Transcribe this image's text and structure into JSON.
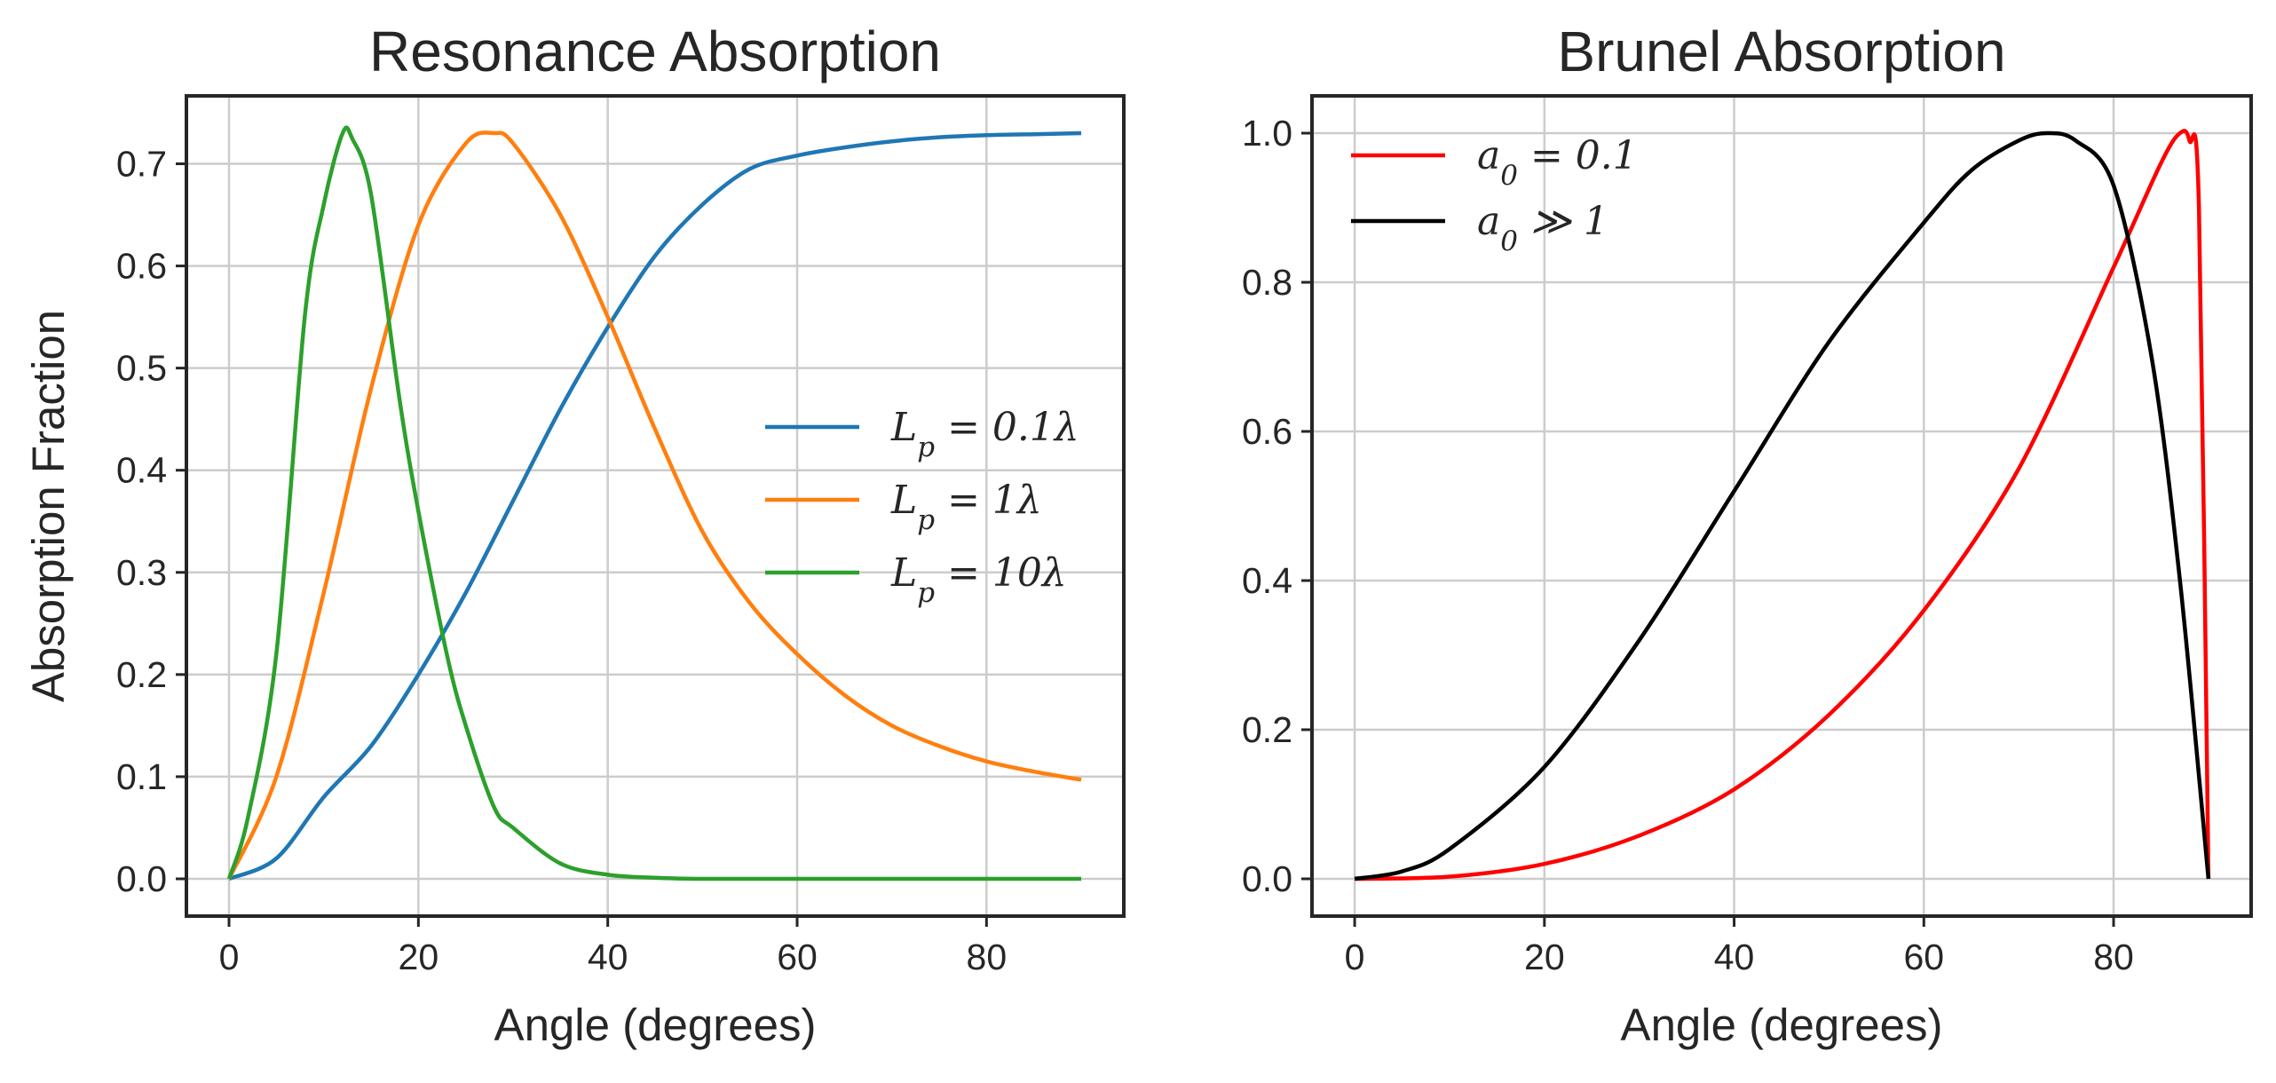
{
  "chart_data": [
    {
      "type": "line",
      "title": "Resonance Absorption",
      "xlabel": "Angle (degrees)",
      "ylabel": "Absorption Fraction",
      "xlim": [
        -4.5,
        94.5
      ],
      "ylim": [
        -0.0365,
        0.7665
      ],
      "xticks": [
        0,
        20,
        40,
        60,
        80
      ],
      "yticks": [
        0.0,
        0.1,
        0.2,
        0.3,
        0.4,
        0.5,
        0.6,
        0.7
      ],
      "grid": true,
      "legend_position": "center-right",
      "series": [
        {
          "name": "L_p = 0.1λ",
          "legend_label": "L_p = 0.1λ",
          "color": "#1f77b4",
          "x": [
            0,
            5,
            10,
            15,
            20,
            25,
            30,
            35,
            40,
            45,
            50,
            55,
            60,
            65,
            70,
            75,
            80,
            85,
            90
          ],
          "y": [
            0.0,
            0.02,
            0.08,
            0.13,
            0.2,
            0.28,
            0.37,
            0.46,
            0.54,
            0.61,
            0.66,
            0.695,
            0.708,
            0.716,
            0.722,
            0.726,
            0.728,
            0.729,
            0.73
          ]
        },
        {
          "name": "L_p = 1λ",
          "legend_label": "L_p = 1λ",
          "color": "#ff7f0e",
          "x": [
            0,
            5,
            10,
            15,
            20,
            25,
            28,
            30,
            35,
            40,
            45,
            50,
            55,
            60,
            65,
            70,
            75,
            80,
            85,
            90
          ],
          "y": [
            0.0,
            0.1,
            0.28,
            0.48,
            0.64,
            0.72,
            0.73,
            0.72,
            0.65,
            0.55,
            0.44,
            0.34,
            0.27,
            0.22,
            0.18,
            0.15,
            0.13,
            0.115,
            0.105,
            0.097
          ]
        },
        {
          "name": "L_p = 10λ",
          "legend_label": "L_p = 10λ",
          "color": "#2ca02c",
          "x": [
            0,
            2,
            5,
            8,
            10,
            12,
            13,
            15,
            18,
            20,
            23,
            25,
            28,
            30,
            35,
            40,
            45,
            50,
            60,
            70,
            80,
            90
          ],
          "y": [
            0.0,
            0.06,
            0.22,
            0.55,
            0.66,
            0.73,
            0.725,
            0.67,
            0.47,
            0.36,
            0.22,
            0.15,
            0.07,
            0.05,
            0.015,
            0.004,
            0.001,
            0.0,
            0.0,
            0.0,
            0.0,
            0.0
          ]
        }
      ]
    },
    {
      "type": "line",
      "title": "Brunel Absorption",
      "xlabel": "Angle (degrees)",
      "ylabel": "",
      "xlim": [
        -4.5,
        94.5
      ],
      "ylim": [
        -0.05,
        1.05
      ],
      "xticks": [
        0,
        20,
        40,
        60,
        80
      ],
      "yticks": [
        0.0,
        0.2,
        0.4,
        0.6,
        0.8,
        1.0
      ],
      "grid": true,
      "legend_position": "top-left",
      "series": [
        {
          "name": "a_0 = 0.1",
          "legend_label": "a_0 = 0.1",
          "color": "#ff0000",
          "x": [
            0,
            10,
            20,
            30,
            40,
            50,
            60,
            70,
            80,
            85,
            87,
            88,
            89,
            90
          ],
          "y": [
            0.0,
            0.003,
            0.02,
            0.058,
            0.12,
            0.22,
            0.36,
            0.55,
            0.82,
            0.96,
            1.0,
            0.99,
            0.9,
            0.0
          ]
        },
        {
          "name": "a_0 ≫ 1",
          "legend_label": "a_0 ≫ 1",
          "color": "#000000",
          "x": [
            0,
            5,
            10,
            20,
            30,
            40,
            50,
            60,
            65,
            70,
            73,
            76,
            80,
            84,
            87,
            90
          ],
          "y": [
            0.0,
            0.01,
            0.04,
            0.15,
            0.32,
            0.52,
            0.72,
            0.88,
            0.95,
            0.99,
            1.0,
            0.99,
            0.93,
            0.7,
            0.4,
            0.0
          ]
        }
      ]
    }
  ]
}
